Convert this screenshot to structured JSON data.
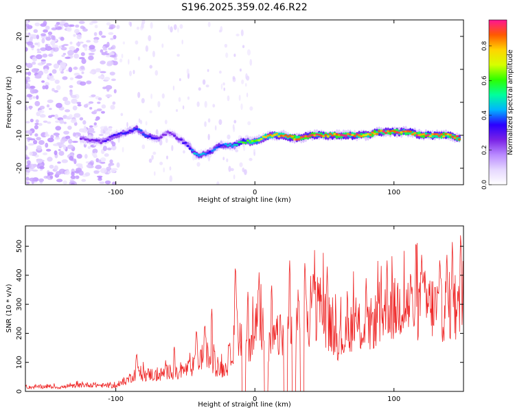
{
  "title": "S196.2025.359.02.46.R22",
  "colors": {
    "snr_line": "#ee2222",
    "frame": "#000000",
    "colormap": [
      "#ffffff",
      "#e6d8ff",
      "#b98aff",
      "#7a22e6",
      "#2a00ff",
      "#00b4ff",
      "#00ff9c",
      "#2cff00",
      "#d6ff00",
      "#ffd400",
      "#ff5a00",
      "#ff1493"
    ]
  },
  "chart_data": [
    {
      "type": "heatmap",
      "name": "spectrogram",
      "xlabel": "Height of straight line (km)",
      "ylabel": "Frequency (Hz)",
      "xlim": [
        -165,
        150
      ],
      "ylim": [
        -25,
        25
      ],
      "xticks": [
        -100,
        0,
        100
      ],
      "xtick_labels": [
        "-100",
        "0",
        "100"
      ],
      "yticks": [
        -20,
        -10,
        0,
        10,
        20
      ],
      "ytick_labels": [
        "-20",
        "-10",
        "0",
        "10",
        "20"
      ],
      "colorbar": {
        "label": "Normalized spectral amplitude",
        "range": [
          0.0,
          0.95
        ],
        "ticks": [
          0.0,
          0.2,
          0.4,
          0.6,
          0.8
        ],
        "tick_labels": [
          "0.0",
          "0.2",
          "0.4",
          "0.6",
          "0.8"
        ]
      },
      "ridge": {
        "note": "Dominant spectral ridge (frequency in Hz vs height in km) with peak normalized amplitude",
        "x": [
          -125,
          -110,
          -100,
          -92,
          -85,
          -78,
          -70,
          -62,
          -55,
          -48,
          -42,
          -38,
          -32,
          -25,
          -20,
          -15,
          -10,
          -5,
          0,
          5,
          10,
          20,
          30,
          40,
          50,
          60,
          70,
          80,
          90,
          100,
          110,
          120,
          130,
          140,
          148
        ],
        "freq": [
          -11,
          -12,
          -10,
          -9,
          -8,
          -10,
          -11,
          -9,
          -11,
          -13,
          -16,
          -16,
          -15,
          -13,
          -13,
          -13,
          -12,
          -12,
          -12,
          -11,
          -10,
          -10,
          -11,
          -10,
          -10,
          -10,
          -10,
          -10,
          -9,
          -9,
          -9,
          -10,
          -10,
          -10,
          -11
        ],
        "amplitude": [
          0.25,
          0.3,
          0.35,
          0.35,
          0.4,
          0.4,
          0.3,
          0.25,
          0.3,
          0.35,
          0.5,
          0.45,
          0.4,
          0.4,
          0.45,
          0.5,
          0.6,
          0.65,
          0.7,
          0.75,
          0.8,
          0.85,
          0.9,
          0.92,
          0.9,
          0.92,
          0.88,
          0.85,
          0.9,
          0.92,
          0.9,
          0.93,
          0.9,
          0.9,
          0.85
        ]
      },
      "noise_region_x": [
        -165,
        -100
      ]
    },
    {
      "type": "line",
      "name": "snr",
      "xlabel": "Height of straight line (km)",
      "ylabel": "SNR (10 * v/v)",
      "xlim": [
        -165,
        150
      ],
      "ylim": [
        0,
        570
      ],
      "xticks": [
        -100,
        0,
        100
      ],
      "xtick_labels": [
        "-100",
        "0",
        "100"
      ],
      "yticks": [
        0,
        100,
        200,
        300,
        400,
        500
      ],
      "ytick_labels": [
        "0",
        "100",
        "200",
        "300",
        "400",
        "500"
      ],
      "series": [
        {
          "name": "SNR",
          "x": [
            -165,
            -150,
            -140,
            -130,
            -120,
            -110,
            -100,
            -95,
            -90,
            -85,
            -80,
            -75,
            -70,
            -65,
            -60,
            -55,
            -50,
            -45,
            -40,
            -35,
            -30,
            -25,
            -20,
            -16,
            -14,
            -12,
            -10,
            -8,
            -5,
            -2,
            0,
            3,
            6,
            10,
            15,
            20,
            25,
            30,
            35,
            40,
            45,
            50,
            55,
            60,
            65,
            70,
            75,
            80,
            85,
            90,
            95,
            100,
            105,
            110,
            115,
            120,
            125,
            130,
            135,
            140,
            145,
            150
          ],
          "values": [
            15,
            18,
            15,
            20,
            25,
            22,
            20,
            30,
            50,
            70,
            60,
            65,
            55,
            70,
            75,
            60,
            80,
            90,
            120,
            140,
            100,
            80,
            90,
            170,
            160,
            180,
            200,
            190,
            170,
            200,
            200,
            260,
            230,
            160,
            200,
            210,
            230,
            280,
            240,
            260,
            320,
            280,
            230,
            190,
            200,
            250,
            240,
            220,
            260,
            270,
            320,
            300,
            330,
            320,
            300,
            330,
            320,
            310,
            300,
            320,
            290,
            300
          ],
          "peaks": {
            "x": [
              -85,
              -58,
              -42,
              -36,
              -31,
              -14,
              -13,
              -5,
              3,
              12,
              25,
              36,
              42,
              52,
              80,
              95,
              112,
              120,
              133,
              138,
              142,
              148
            ],
            "values": [
              135,
              160,
              220,
              240,
              290,
              450,
              300,
              350,
              410,
              380,
              460,
              460,
              430,
              430,
              390,
              460,
              430,
              490,
              470,
              490,
              525,
              560
            ]
          },
          "dropouts": {
            "x": [
              -8,
              8,
              22,
              28,
              34
            ],
            "values": [
              0,
              0,
              0,
              0,
              0
            ]
          }
        }
      ]
    }
  ]
}
